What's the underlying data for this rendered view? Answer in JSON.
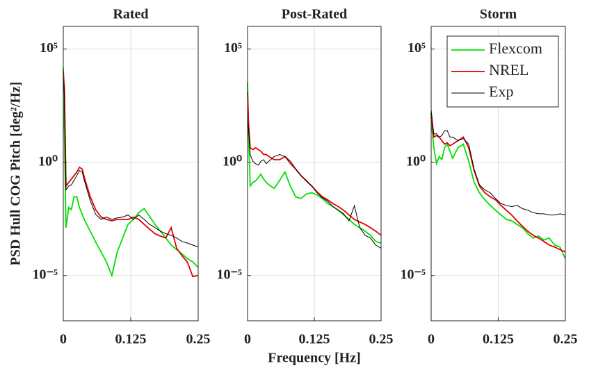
{
  "chart_data": [
    {
      "type": "line",
      "title": "Rated",
      "ylabel": "PSD Hull COG Pitch [deg²/Hz]",
      "log_y": true,
      "grid": true,
      "x": [
        0,
        0.002,
        0.005,
        0.01,
        0.015,
        0.02,
        0.025,
        0.03,
        0.035,
        0.04,
        0.05,
        0.06,
        0.07,
        0.08,
        0.09,
        0.1,
        0.11,
        0.12,
        0.13,
        0.14,
        0.15,
        0.16,
        0.17,
        0.18,
        0.19,
        0.2,
        0.21,
        0.22,
        0.23,
        0.24,
        0.25
      ],
      "xlim": [
        0,
        0.25
      ],
      "xticks": [
        0,
        0.125,
        0.25
      ],
      "ylim": [
        1e-07,
        1000000.0
      ],
      "yticks": [
        {
          "value": 1e-05,
          "label": "10⁻⁵"
        },
        {
          "value": 1,
          "label": "10⁰"
        },
        {
          "value": 100000,
          "label": "10⁵"
        }
      ],
      "series": [
        {
          "color": "#00e000",
          "values": [
            15000,
            25,
            0.0013,
            0.01,
            0.008,
            0.03,
            0.03,
            0.01,
            0.005,
            0.0026,
            0.0009,
            0.0003,
            0.00011,
            4e-05,
            1e-05,
            0.00011,
            0.00045,
            0.0018,
            0.003,
            0.006,
            0.009,
            0.004,
            0.0018,
            0.0009,
            0.00045,
            0.00022,
            0.00014,
            9e-05,
            5.5e-05,
            4e-05,
            2.3e-05
          ]
        },
        {
          "color": "#e00000",
          "values": [
            10000,
            1800,
            0.09,
            0.13,
            0.18,
            0.26,
            0.37,
            0.6,
            0.5,
            0.18,
            0.03,
            0.008,
            0.0038,
            0.003,
            0.0026,
            0.003,
            0.003,
            0.003,
            0.0038,
            0.003,
            0.0018,
            0.0011,
            0.0007,
            0.00055,
            0.00045,
            0.0013,
            0.00016,
            7.5e-05,
            3.9e-05,
            9e-06,
            1e-05
          ]
        },
        {
          "color": "#000000",
          "values": [
            7000,
            900,
            0.06,
            0.09,
            0.1,
            0.16,
            0.26,
            0.43,
            0.37,
            0.13,
            0.02,
            0.005,
            0.003,
            0.0038,
            0.003,
            0.0035,
            0.0038,
            0.0047,
            0.003,
            0.0047,
            0.003,
            0.0018,
            0.0013,
            0.0009,
            0.0007,
            0.0006,
            0.00045,
            0.00032,
            0.00027,
            0.00022,
            0.00018
          ]
        }
      ]
    },
    {
      "type": "line",
      "title": "Post-Rated",
      "xlabel": "Frequency [Hz]",
      "log_y": true,
      "grid": true,
      "x": [
        0,
        0.002,
        0.005,
        0.01,
        0.015,
        0.02,
        0.025,
        0.03,
        0.035,
        0.04,
        0.05,
        0.06,
        0.07,
        0.08,
        0.09,
        0.1,
        0.11,
        0.12,
        0.13,
        0.14,
        0.15,
        0.16,
        0.17,
        0.18,
        0.19,
        0.2,
        0.21,
        0.22,
        0.23,
        0.24,
        0.25
      ],
      "xlim": [
        0,
        0.25
      ],
      "xticks": [
        0,
        0.125,
        0.25
      ],
      "ylim": [
        1e-07,
        1000000.0
      ],
      "yticks": [
        {
          "value": 1e-05,
          "label": "10⁻⁵"
        },
        {
          "value": 1,
          "label": "10⁰"
        },
        {
          "value": 100000,
          "label": "10⁵"
        }
      ],
      "series": [
        {
          "color": "#00e000",
          "values": [
            3500,
            13,
            0.09,
            0.13,
            0.15,
            0.21,
            0.3,
            0.18,
            0.13,
            0.1,
            0.07,
            0.16,
            0.37,
            0.09,
            0.03,
            0.025,
            0.04,
            0.045,
            0.036,
            0.025,
            0.015,
            0.011,
            0.0076,
            0.0047,
            0.003,
            0.0018,
            0.0013,
            0.0009,
            0.0006,
            0.00032,
            0.00027
          ]
        },
        {
          "color": "#e00000",
          "values": [
            1250,
            50,
            4.4,
            3.6,
            4.4,
            3.6,
            3.1,
            2.2,
            2.2,
            1.8,
            1.3,
            1.3,
            1.8,
            1.1,
            0.5,
            0.26,
            0.15,
            0.09,
            0.05,
            0.03,
            0.022,
            0.015,
            0.011,
            0.0076,
            0.0047,
            0.003,
            0.0023,
            0.0018,
            0.0013,
            0.0009,
            0.0006
          ]
        },
        {
          "color": "#000000",
          "values": [
            105,
            25,
            2.2,
            1.1,
            0.87,
            0.75,
            1.1,
            1.3,
            0.87,
            1.1,
            1.8,
            2.2,
            1.8,
            0.87,
            0.5,
            0.26,
            0.16,
            0.09,
            0.045,
            0.027,
            0.019,
            0.011,
            0.0076,
            0.0053,
            0.0026,
            0.012,
            0.0013,
            0.0006,
            0.00045,
            0.00022,
            0.00016
          ]
        }
      ]
    },
    {
      "type": "line",
      "title": "Storm",
      "log_y": true,
      "grid": true,
      "legend": "upper right",
      "x": [
        0,
        0.002,
        0.005,
        0.01,
        0.015,
        0.02,
        0.025,
        0.03,
        0.035,
        0.04,
        0.05,
        0.06,
        0.07,
        0.08,
        0.09,
        0.1,
        0.11,
        0.12,
        0.13,
        0.14,
        0.15,
        0.16,
        0.17,
        0.18,
        0.19,
        0.2,
        0.21,
        0.22,
        0.23,
        0.24,
        0.25
      ],
      "xlim": [
        0,
        0.25
      ],
      "xticks": [
        0,
        0.125,
        0.25
      ],
      "ylim": [
        1e-07,
        1000000.0
      ],
      "yticks": [
        {
          "value": 1e-05,
          "label": "10⁻⁵"
        },
        {
          "value": 1,
          "label": "10⁰"
        },
        {
          "value": 100000,
          "label": "10⁵"
        }
      ],
      "series": [
        {
          "name": "Flexcom",
          "color": "#00e000",
          "values": [
            105,
            25,
            4.4,
            0.87,
            1.8,
            1.3,
            4.4,
            6.3,
            3.1,
            1.5,
            4.4,
            6.3,
            1.1,
            0.13,
            0.045,
            0.022,
            0.0125,
            0.0076,
            0.0047,
            0.003,
            0.0026,
            0.0018,
            0.0013,
            0.0007,
            0.00045,
            0.00055,
            0.00037,
            0.00045,
            0.00022,
            0.00018,
            5.5e-05
          ]
        },
        {
          "name": "NREL",
          "color": "#e00000",
          "values": [
            150,
            50,
            13,
            15,
            13,
            9,
            6.3,
            7.2,
            5.4,
            6.3,
            9,
            13,
            4.4,
            0.43,
            0.09,
            0.045,
            0.03,
            0.022,
            0.0125,
            0.0076,
            0.0047,
            0.0026,
            0.0015,
            0.0009,
            0.0006,
            0.00045,
            0.00032,
            0.00022,
            0.00018,
            0.00014,
            0.00011
          ]
        },
        {
          "name": "Exp",
          "color": "#000000",
          "values": [
            215,
            75,
            18,
            18,
            13,
            15,
            25,
            25,
            13,
            13,
            9,
            11,
            6.3,
            0.5,
            0.1,
            0.06,
            0.045,
            0.025,
            0.015,
            0.0125,
            0.011,
            0.0125,
            0.009,
            0.0076,
            0.006,
            0.0053,
            0.0053,
            0.0047,
            0.0047,
            0.0053,
            0.0047
          ]
        }
      ]
    }
  ]
}
